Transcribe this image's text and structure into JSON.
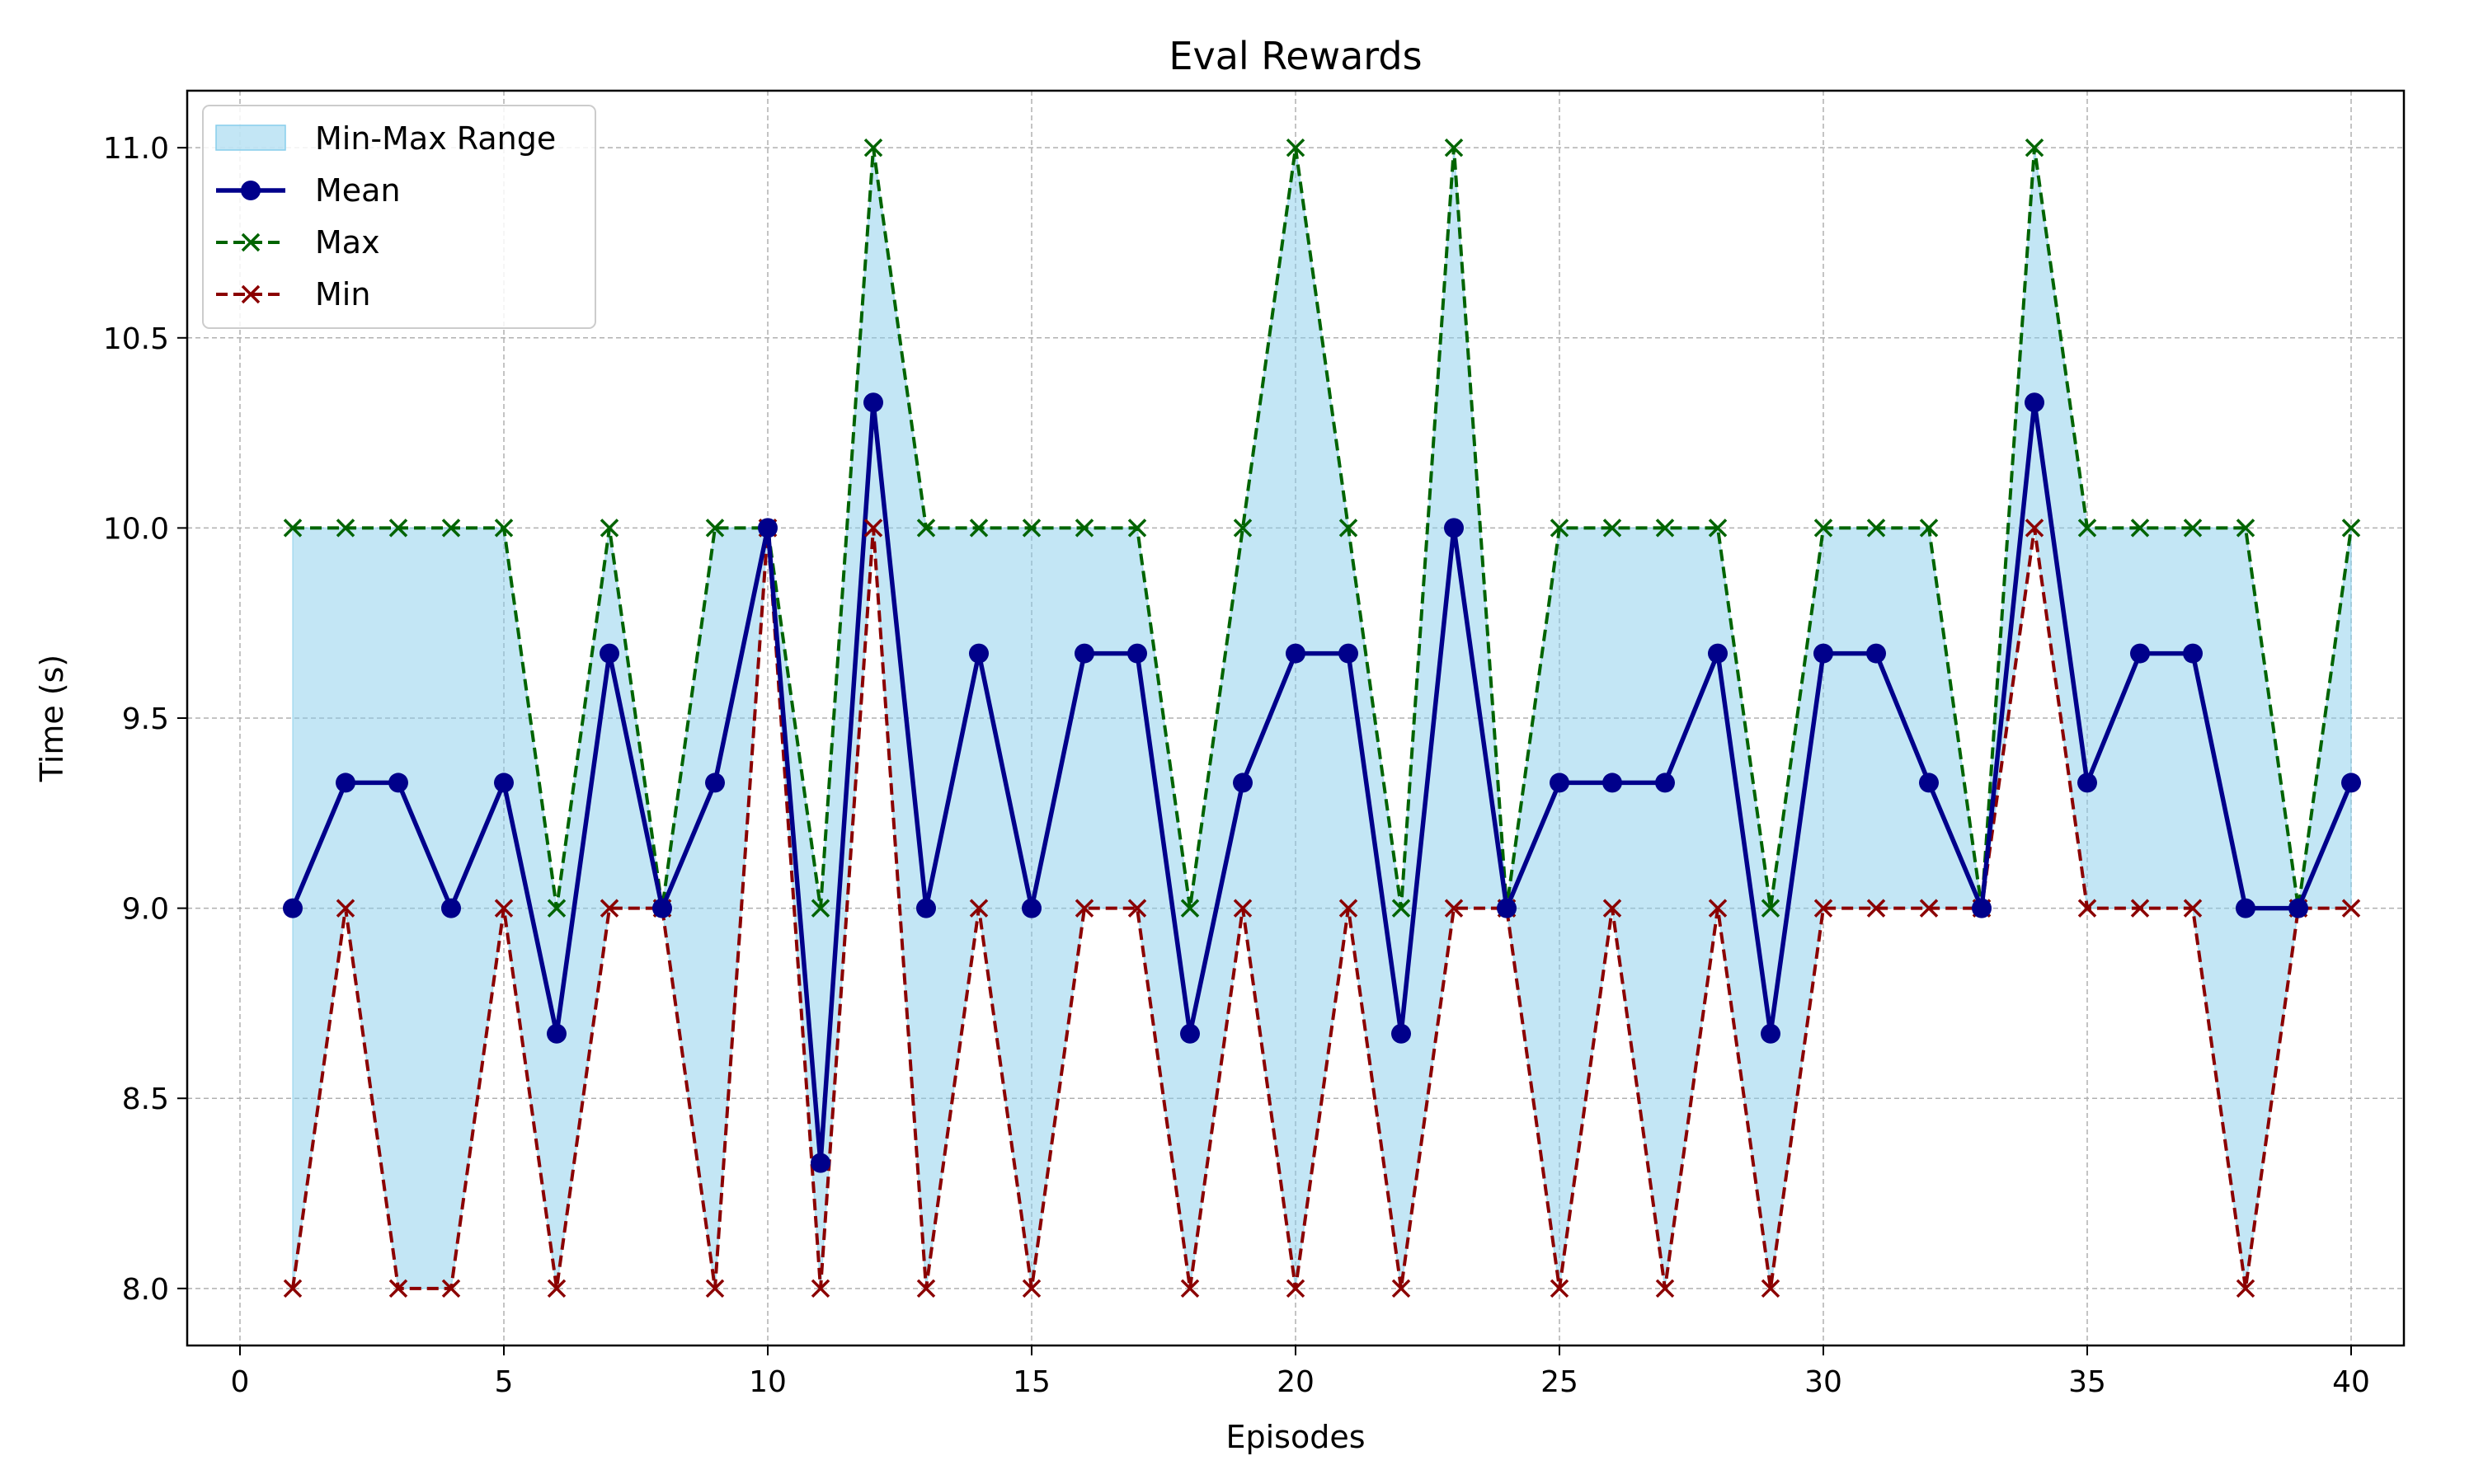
{
  "chart_data": {
    "type": "line",
    "title": "Eval Rewards",
    "xlabel": "Episodes",
    "ylabel": "Time (s)",
    "xlim": [
      -1,
      41
    ],
    "ylim": [
      7.85,
      11.15
    ],
    "xticks": [
      0,
      5,
      10,
      15,
      20,
      25,
      30,
      35,
      40
    ],
    "yticks": [
      8.0,
      8.5,
      9.0,
      9.5,
      10.0,
      10.5,
      11.0
    ],
    "ytick_labels": [
      "8.0",
      "8.5",
      "9.0",
      "9.5",
      "10.0",
      "10.5",
      "11.0"
    ],
    "grid": true,
    "legend_position": "top-left",
    "x": [
      1,
      2,
      3,
      4,
      5,
      6,
      7,
      8,
      9,
      10,
      11,
      12,
      13,
      14,
      15,
      16,
      17,
      18,
      19,
      20,
      21,
      22,
      23,
      24,
      25,
      26,
      27,
      28,
      29,
      30,
      31,
      32,
      33,
      34,
      35,
      36,
      37,
      38,
      39,
      40
    ],
    "band": {
      "name": "Min-Max Range",
      "color": "#87ceeb"
    },
    "series": [
      {
        "name": "Mean",
        "color": "#00008b",
        "style": "solid",
        "marker": "circle",
        "values": [
          9.0,
          9.33,
          9.33,
          9.0,
          9.33,
          8.67,
          9.67,
          9.0,
          9.33,
          10.0,
          8.33,
          10.33,
          9.0,
          9.67,
          9.0,
          9.67,
          9.67,
          8.67,
          9.33,
          9.67,
          9.67,
          8.67,
          10.0,
          9.0,
          9.33,
          9.33,
          9.33,
          9.67,
          8.67,
          9.67,
          9.67,
          9.33,
          9.0,
          10.33,
          9.33,
          9.67,
          9.67,
          9.0,
          9.0,
          9.33
        ]
      },
      {
        "name": "Max",
        "color": "#006400",
        "style": "dashed",
        "marker": "x",
        "values": [
          10,
          10,
          10,
          10,
          10,
          9,
          10,
          9,
          10,
          10,
          9,
          11,
          10,
          10,
          10,
          10,
          10,
          9,
          10,
          11,
          10,
          9,
          11,
          9,
          10,
          10,
          10,
          10,
          9,
          10,
          10,
          10,
          9,
          11,
          10,
          10,
          10,
          10,
          9,
          10
        ]
      },
      {
        "name": "Min",
        "color": "#8b0000",
        "style": "dashed",
        "marker": "x",
        "values": [
          8,
          9,
          8,
          8,
          9,
          8,
          9,
          9,
          8,
          10,
          8,
          10,
          8,
          9,
          8,
          9,
          9,
          8,
          9,
          8,
          9,
          8,
          9,
          9,
          8,
          9,
          8,
          9,
          8,
          9,
          9,
          9,
          9,
          10,
          9,
          9,
          9,
          8,
          9,
          9
        ]
      }
    ]
  }
}
